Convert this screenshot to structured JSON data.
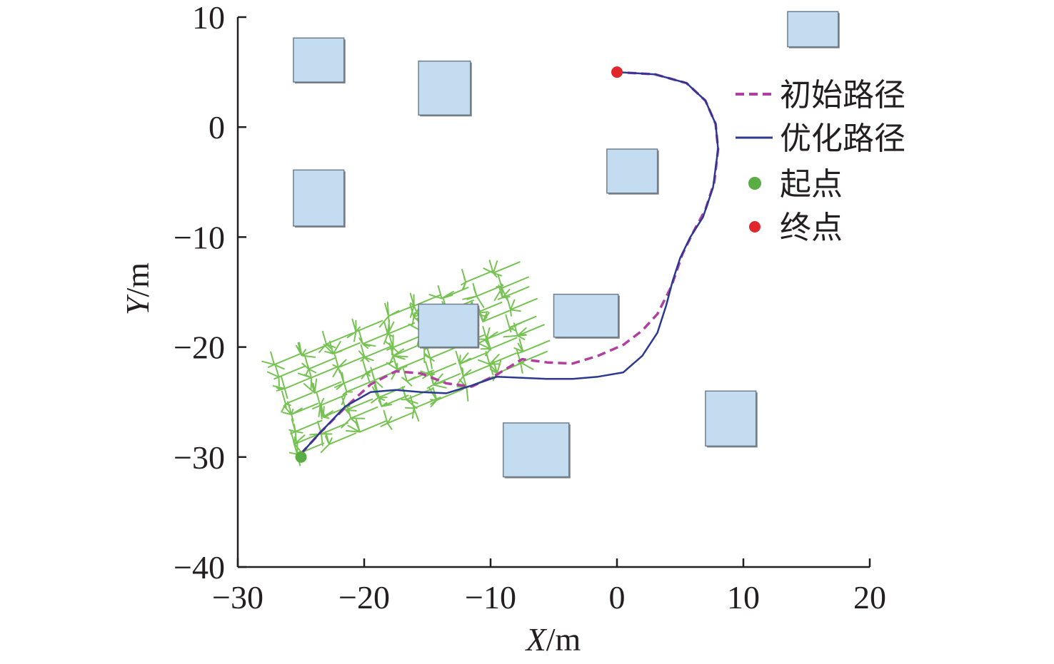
{
  "chart_data": {
    "type": "line",
    "title": "",
    "xlabel": {
      "var": "X",
      "unit": "/m"
    },
    "ylabel": {
      "var": "Y",
      "unit": "/m"
    },
    "xlim": [
      -30,
      20
    ],
    "ylim": [
      -40,
      10
    ],
    "xticks": [
      -30,
      -20,
      -10,
      0,
      10,
      20
    ],
    "yticks": [
      10,
      0,
      -10,
      -20,
      -30,
      -40
    ],
    "xtick_labels": [
      "−30",
      "−20",
      "−10",
      "0",
      "10",
      "20"
    ],
    "ytick_labels": [
      "10",
      "0",
      "−10",
      "−20",
      "−30",
      "−40"
    ],
    "grid": false,
    "legend_position": "top-right",
    "legend": [
      {
        "label": "初始路径",
        "kind": "dashed-line",
        "color": "#b03fa0"
      },
      {
        "label": "优化路径",
        "kind": "solid-line",
        "color": "#2b3990"
      },
      {
        "label": "起点",
        "kind": "marker",
        "color": "#5aac44"
      },
      {
        "label": "终点",
        "kind": "marker",
        "color": "#e0262b"
      }
    ],
    "series": [
      {
        "name": "初始路径",
        "style": "dashed",
        "color": "#b03fa0",
        "x": [
          -25,
          -23.5,
          -21.5,
          -19.5,
          -17.5,
          -15.5,
          -13.5,
          -11.5,
          -9.5,
          -7.5,
          -5.5,
          -3.5,
          -1.5,
          0.5,
          2,
          3.2,
          4.3,
          5.2,
          6.1,
          7,
          7.7,
          8,
          7.8,
          7,
          5.5,
          3,
          0
        ],
        "y": [
          -29.7,
          -27.8,
          -25.5,
          -23.4,
          -22.2,
          -22.4,
          -23.3,
          -23.6,
          -22.5,
          -21.1,
          -21.4,
          -21.5,
          -20.8,
          -19.8,
          -18.5,
          -17,
          -14.5,
          -11.5,
          -9.4,
          -7.5,
          -5,
          -2,
          0.3,
          2.4,
          4,
          4.8,
          5
        ]
      },
      {
        "name": "优化路径",
        "style": "solid",
        "color": "#2b3990",
        "x": [
          -25,
          -23.5,
          -21.5,
          -19.5,
          -17.5,
          -15.5,
          -13.5,
          -11.5,
          -9.5,
          -7.5,
          -5.5,
          -3.5,
          -1.5,
          0.5,
          2,
          3.2,
          3.9,
          4.4,
          5,
          5.8,
          6.8,
          7.6,
          8,
          7.8,
          7,
          5.5,
          3,
          0
        ],
        "y": [
          -29.7,
          -27.8,
          -25.4,
          -24.1,
          -23.9,
          -24.1,
          -24.2,
          -23.5,
          -22.7,
          -22.8,
          -22.9,
          -22.9,
          -22.7,
          -22.3,
          -20.8,
          -18.7,
          -16.2,
          -14,
          -11.9,
          -10,
          -8.2,
          -5.5,
          -2,
          0.3,
          2.4,
          4,
          4.8,
          5
        ]
      }
    ],
    "points": [
      {
        "name": "起点",
        "x": -25,
        "y": -30,
        "color": "#5aac44"
      },
      {
        "name": "终点",
        "x": 0,
        "y": 5,
        "color": "#e0262b"
      }
    ],
    "obstacles": [
      {
        "x0": -25.6,
        "x1": -21.6,
        "y0": 4.1,
        "y1": 8.1
      },
      {
        "x0": -15.7,
        "x1": -11.6,
        "y0": 1.1,
        "y1": 6
      },
      {
        "x0": -25.6,
        "x1": -21.6,
        "y0": -9,
        "y1": -3.9
      },
      {
        "x0": -0.8,
        "x1": 3.2,
        "y0": -6,
        "y1": -2
      },
      {
        "x0": 13.5,
        "x1": 17.5,
        "y0": 7.3,
        "y1": 10.5
      },
      {
        "x0": -15.7,
        "x1": -11,
        "y0": -20,
        "y1": -16.1
      },
      {
        "x0": -5,
        "x1": 0.1,
        "y0": -19.1,
        "y1": -15.2
      },
      {
        "x0": 7,
        "x1": 11,
        "y0": -29,
        "y1": -24
      },
      {
        "x0": -9,
        "x1": -3.8,
        "y0": -31.8,
        "y1": -26.9
      }
    ],
    "tree_color": "#6fbf4a"
  }
}
